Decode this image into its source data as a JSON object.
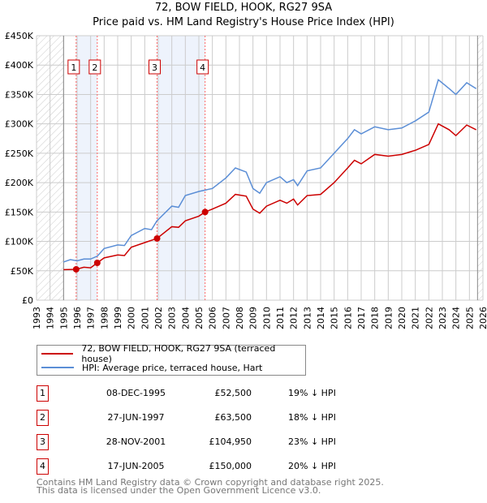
{
  "title": "72, BOW FIELD, HOOK, RG27 9SA",
  "subtitle": "Price paid vs. HM Land Registry's House Price Index (HPI)",
  "colors": {
    "property": "#cc0000",
    "hpi": "#5b8ed6",
    "shade": "#eef3fc"
  },
  "chart_data": {
    "type": "line",
    "title": "72, BOW FIELD, HOOK, RG27 9SA",
    "subtitle": "Price paid vs. HM Land Registry's House Price Index (HPI)",
    "xlim": [
      1993,
      2026
    ],
    "ylim": [
      0,
      450000
    ],
    "x_ticks": [
      "1993",
      "1994",
      "1995",
      "1996",
      "1997",
      "1998",
      "1999",
      "2000",
      "2001",
      "2002",
      "2003",
      "2004",
      "2005",
      "2006",
      "2007",
      "2008",
      "2009",
      "2010",
      "2011",
      "2012",
      "2013",
      "2014",
      "2015",
      "2016",
      "2017",
      "2018",
      "2019",
      "2020",
      "2021",
      "2022",
      "2023",
      "2024",
      "2025",
      "2026"
    ],
    "y_ticks": [
      {
        "v": 0,
        "label": "£0"
      },
      {
        "v": 50000,
        "label": "£50K"
      },
      {
        "v": 100000,
        "label": "£100K"
      },
      {
        "v": 150000,
        "label": "£150K"
      },
      {
        "v": 200000,
        "label": "£200K"
      },
      {
        "v": 250000,
        "label": "£250K"
      },
      {
        "v": 300000,
        "label": "£300K"
      },
      {
        "v": 350000,
        "label": "£350K"
      },
      {
        "v": 400000,
        "label": "£400K"
      },
      {
        "v": 450000,
        "label": "£450K"
      }
    ],
    "grid": true,
    "data_range": [
      1995,
      2025.6
    ],
    "series": [
      {
        "name": "72, BOW FIELD, HOOK, RG27 9SA (terraced house)",
        "color": "#cc0000",
        "x": [
          1995,
          1995.93,
          1996.5,
          1997,
          1997.49,
          1998,
          1999,
          1999.5,
          2000,
          2001,
          2001.9,
          2003,
          2003.5,
          2004,
          2005,
          2005.46,
          2006,
          2007,
          2007.7,
          2008.5,
          2009,
          2009.5,
          2010,
          2011,
          2011.5,
          2012,
          2012.3,
          2013,
          2014,
          2015,
          2016,
          2016.5,
          2017,
          2018,
          2019,
          2020,
          2021,
          2022,
          2022.7,
          2023.5,
          2024,
          2024.8,
          2025.5
        ],
        "values": [
          52000,
          52500,
          56000,
          55000,
          63500,
          72000,
          77000,
          76000,
          90000,
          98000,
          104950,
          125000,
          124000,
          135000,
          143000,
          150000,
          155000,
          165000,
          180000,
          177000,
          155000,
          148000,
          160000,
          170000,
          165000,
          172000,
          162000,
          178000,
          180000,
          200000,
          225000,
          238000,
          232000,
          248000,
          245000,
          248000,
          255000,
          265000,
          300000,
          290000,
          280000,
          298000,
          290000
        ]
      },
      {
        "name": "HPI: Average price, terraced house, Hart",
        "color": "#5b8ed6",
        "x": [
          1995,
          1995.5,
          1996,
          1996.5,
          1997,
          1997.5,
          1998,
          1999,
          1999.5,
          2000,
          2001,
          2001.5,
          2001.9,
          2003,
          2003.5,
          2004,
          2005,
          2006,
          2007,
          2007.7,
          2008.5,
          2009,
          2009.5,
          2010,
          2011,
          2011.5,
          2012,
          2012.3,
          2013,
          2014,
          2015,
          2016,
          2016.5,
          2017,
          2018,
          2019,
          2020,
          2021,
          2022,
          2022.7,
          2023.5,
          2024,
          2024.8,
          2025.5
        ],
        "values": [
          65000,
          69000,
          67000,
          70000,
          70000,
          75000,
          88000,
          94000,
          93000,
          110000,
          122000,
          120000,
          135000,
          160000,
          158000,
          178000,
          185000,
          190000,
          208000,
          225000,
          218000,
          190000,
          182000,
          200000,
          210000,
          200000,
          205000,
          195000,
          220000,
          225000,
          250000,
          275000,
          290000,
          283000,
          295000,
          290000,
          293000,
          305000,
          320000,
          375000,
          360000,
          350000,
          370000,
          360000
        ]
      }
    ],
    "sales": [
      {
        "n": "1",
        "x": 1995.93,
        "value": 52500
      },
      {
        "n": "2",
        "x": 1997.49,
        "value": 63500
      },
      {
        "n": "3",
        "x": 2001.91,
        "value": 104950
      },
      {
        "n": "4",
        "x": 2005.46,
        "value": 150000
      }
    ],
    "shaded_ranges": [
      [
        1995.93,
        1997.49
      ],
      [
        2001.91,
        2005.46
      ]
    ],
    "legend_position": "bottom"
  },
  "legend": {
    "property": "72, BOW FIELD, HOOK, RG27 9SA (terraced house)",
    "hpi": "HPI: Average price, terraced house, Hart"
  },
  "transactions": [
    {
      "n": "1",
      "date": "08-DEC-1995",
      "price": "£52,500",
      "hpi": "19% ↓ HPI"
    },
    {
      "n": "2",
      "date": "27-JUN-1997",
      "price": "£63,500",
      "hpi": "18% ↓ HPI"
    },
    {
      "n": "3",
      "date": "28-NOV-2001",
      "price": "£104,950",
      "hpi": "23% ↓ HPI"
    },
    {
      "n": "4",
      "date": "17-JUN-2005",
      "price": "£150,000",
      "hpi": "20% ↓ HPI"
    }
  ],
  "footer": {
    "line1": "Contains HM Land Registry data © Crown copyright and database right 2025.",
    "line2": "This data is licensed under the Open Government Licence v3.0."
  }
}
